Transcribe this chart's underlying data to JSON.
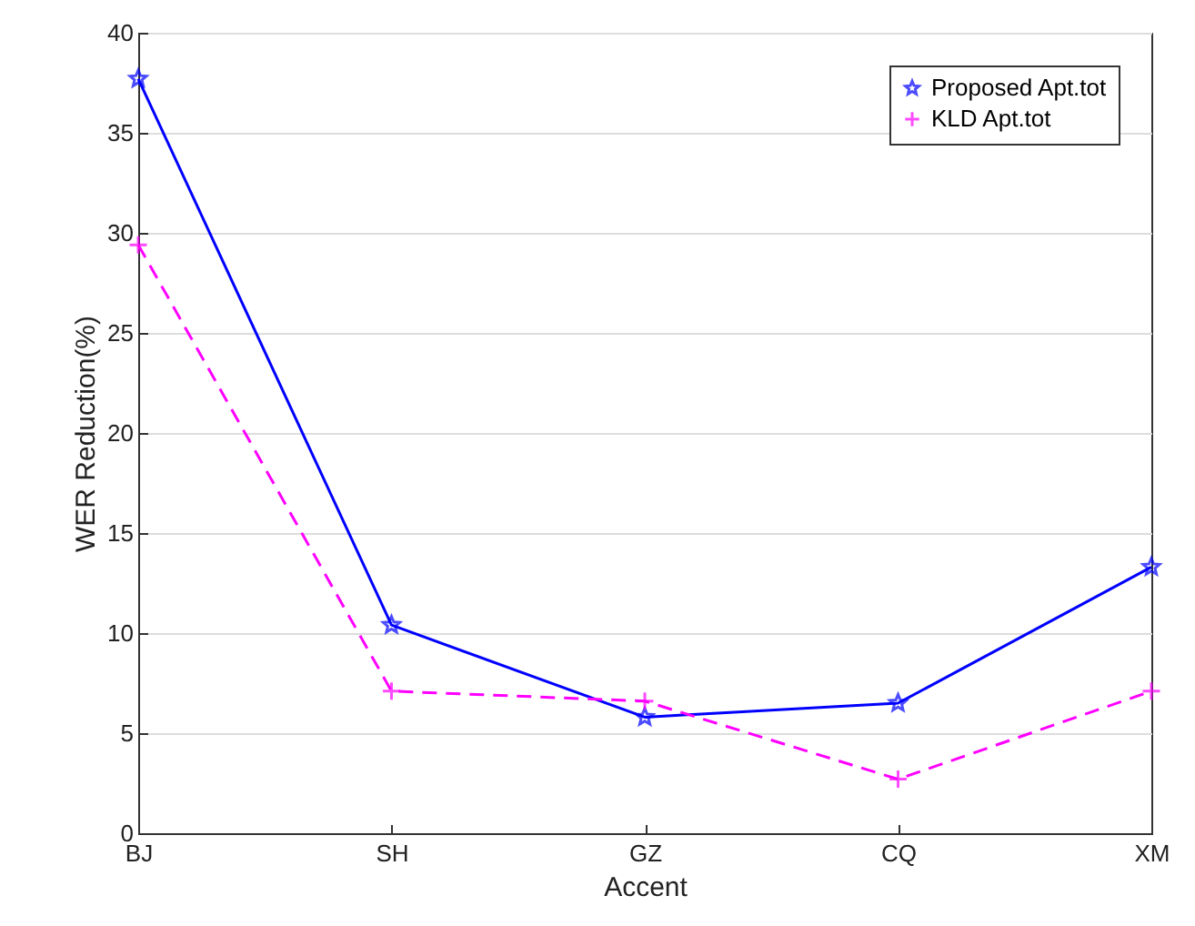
{
  "chart_data": {
    "type": "line",
    "xlabel": "Accent",
    "ylabel": "WER Reduction(%)",
    "categories": [
      "BJ",
      "SH",
      "GZ",
      "CQ",
      "XM"
    ],
    "series": [
      {
        "name": "Proposed Apt.tot",
        "color": "#0000ff",
        "marker": "star",
        "line_style": "solid",
        "values": [
          37.7,
          10.4,
          5.8,
          6.5,
          13.3
        ]
      },
      {
        "name": "KLD Apt.tot",
        "color": "#ff00ff",
        "marker": "cross",
        "line_style": "dashed",
        "values": [
          29.4,
          7.1,
          6.6,
          2.7,
          7.1
        ]
      }
    ],
    "ylim": [
      0,
      40
    ],
    "yticks": [
      0,
      5,
      10,
      15,
      20,
      25,
      30,
      35,
      40
    ],
    "grid": "y",
    "legend": "top right"
  }
}
